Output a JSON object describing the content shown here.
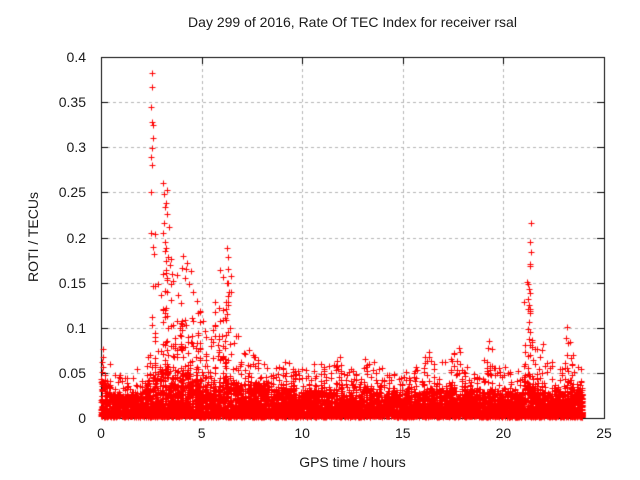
{
  "style": {
    "background": "#ffffff",
    "marker_color": "#ff0000",
    "grid_color": "#b4b4b4",
    "axis_color": "#000000",
    "text_color": "#1a1a1a"
  },
  "chart_data": {
    "type": "scatter",
    "title": "Day 299 of 2016, Rate Of TEC Index for receiver rsal",
    "xlabel": "GPS time / hours",
    "ylabel": "ROTI / TECUs",
    "xlim": [
      0,
      25
    ],
    "ylim": [
      0,
      0.4
    ],
    "xticks": [
      0,
      5,
      10,
      15,
      20,
      25
    ],
    "xtick_labels": [
      "0",
      "5",
      "10",
      "15",
      "20",
      "25"
    ],
    "yticks": [
      0,
      0.05,
      0.1,
      0.15,
      0.2,
      0.25,
      0.3,
      0.35,
      0.4
    ],
    "ytick_labels": [
      "0",
      "0.05",
      "0.1",
      "0.15",
      "0.2",
      "0.25",
      "0.3",
      "0.35",
      "0.4"
    ],
    "grid": true,
    "grid_style": "dashed",
    "legend": "none",
    "marker": {
      "shape": "plus",
      "size": 7,
      "color": "#ff0000"
    },
    "series_name": "ROTI",
    "data_extent_hours": [
      0,
      23.93
    ],
    "baseline_envelope_bins": {
      "bin_width_hours": 0.5,
      "columns": [
        "hour_start",
        "dense_top_tecu",
        "spike_top_tecu"
      ],
      "rows": [
        [
          0.0,
          0.045,
          0.06
        ],
        [
          0.5,
          0.028,
          0.048
        ],
        [
          1.0,
          0.026,
          0.046
        ],
        [
          1.5,
          0.03,
          0.055
        ],
        [
          2.0,
          0.038,
          0.075
        ],
        [
          2.5,
          0.055,
          0.15
        ],
        [
          3.0,
          0.065,
          0.185
        ],
        [
          3.5,
          0.058,
          0.16
        ],
        [
          4.0,
          0.062,
          0.175
        ],
        [
          4.5,
          0.055,
          0.135
        ],
        [
          5.0,
          0.045,
          0.105
        ],
        [
          5.5,
          0.04,
          0.13
        ],
        [
          6.0,
          0.045,
          0.16
        ],
        [
          6.5,
          0.042,
          0.092
        ],
        [
          7.0,
          0.038,
          0.078
        ],
        [
          7.5,
          0.042,
          0.072
        ],
        [
          8.0,
          0.038,
          0.064
        ],
        [
          8.5,
          0.034,
          0.058
        ],
        [
          9.0,
          0.038,
          0.065
        ],
        [
          9.5,
          0.034,
          0.056
        ],
        [
          10.0,
          0.03,
          0.054
        ],
        [
          10.5,
          0.034,
          0.063
        ],
        [
          11.0,
          0.034,
          0.058
        ],
        [
          11.5,
          0.04,
          0.066
        ],
        [
          12.0,
          0.034,
          0.056
        ],
        [
          12.5,
          0.03,
          0.053
        ],
        [
          13.0,
          0.034,
          0.06
        ],
        [
          13.5,
          0.034,
          0.063
        ],
        [
          14.0,
          0.03,
          0.054
        ],
        [
          14.5,
          0.029,
          0.05
        ],
        [
          15.0,
          0.03,
          0.056
        ],
        [
          15.5,
          0.034,
          0.06
        ],
        [
          16.0,
          0.038,
          0.07
        ],
        [
          16.5,
          0.036,
          0.063
        ],
        [
          17.0,
          0.034,
          0.068
        ],
        [
          17.5,
          0.038,
          0.075
        ],
        [
          18.0,
          0.034,
          0.06
        ],
        [
          18.5,
          0.03,
          0.053
        ],
        [
          19.0,
          0.036,
          0.08
        ],
        [
          19.5,
          0.034,
          0.058
        ],
        [
          20.0,
          0.032,
          0.056
        ],
        [
          20.5,
          0.03,
          0.053
        ],
        [
          21.0,
          0.042,
          0.13
        ],
        [
          21.5,
          0.036,
          0.078
        ],
        [
          22.0,
          0.032,
          0.062
        ],
        [
          22.5,
          0.032,
          0.063
        ],
        [
          23.0,
          0.038,
          0.09
        ],
        [
          23.5,
          0.034,
          0.058
        ]
      ]
    },
    "notable_points": [
      [
        2.54,
        0.382
      ],
      [
        2.54,
        0.367
      ],
      [
        2.5,
        0.345
      ],
      [
        2.55,
        0.328
      ],
      [
        2.57,
        0.325
      ],
      [
        2.56,
        0.31
      ],
      [
        2.54,
        0.299
      ],
      [
        2.5,
        0.289
      ],
      [
        2.54,
        0.28
      ],
      [
        2.5,
        0.25
      ],
      [
        2.5,
        0.205
      ],
      [
        2.69,
        0.204
      ],
      [
        2.6,
        0.19
      ],
      [
        2.63,
        0.182
      ],
      [
        3.09,
        0.26
      ],
      [
        3.29,
        0.253
      ],
      [
        3.14,
        0.248
      ],
      [
        3.24,
        0.238
      ],
      [
        3.19,
        0.234
      ],
      [
        3.29,
        0.226
      ],
      [
        3.14,
        0.216
      ],
      [
        3.39,
        0.212
      ],
      [
        3.09,
        0.205
      ],
      [
        3.19,
        0.195
      ],
      [
        3.24,
        0.188
      ],
      [
        3.34,
        0.178
      ],
      [
        3.44,
        0.17
      ],
      [
        3.54,
        0.16
      ],
      [
        3.59,
        0.152
      ],
      [
        4.08,
        0.18
      ],
      [
        4.28,
        0.172
      ],
      [
        4.48,
        0.163
      ],
      [
        4.18,
        0.155
      ],
      [
        4.38,
        0.148
      ],
      [
        4.58,
        0.14
      ],
      [
        4.78,
        0.13
      ],
      [
        4.9,
        0.118
      ],
      [
        5.05,
        0.108
      ],
      [
        5.93,
        0.164
      ],
      [
        6.27,
        0.188
      ],
      [
        6.32,
        0.178
      ],
      [
        6.3,
        0.165
      ],
      [
        6.25,
        0.15
      ],
      [
        6.35,
        0.14
      ],
      [
        6.22,
        0.128
      ],
      [
        6.28,
        0.115
      ],
      [
        0.08,
        0.076
      ],
      [
        0.1,
        0.068
      ],
      [
        0.06,
        0.062
      ],
      [
        0.12,
        0.057
      ],
      [
        21.36,
        0.216
      ],
      [
        21.33,
        0.195
      ],
      [
        21.35,
        0.184
      ],
      [
        21.33,
        0.171
      ],
      [
        21.34,
        0.168
      ],
      [
        21.16,
        0.151
      ],
      [
        21.2,
        0.148
      ],
      [
        21.25,
        0.143
      ],
      [
        21.3,
        0.138
      ],
      [
        21.22,
        0.132
      ],
      [
        21.28,
        0.125
      ],
      [
        21.33,
        0.119
      ],
      [
        21.26,
        0.106
      ],
      [
        21.3,
        0.095
      ],
      [
        21.28,
        0.088
      ],
      [
        21.95,
        0.082
      ],
      [
        23.15,
        0.101
      ],
      [
        23.1,
        0.089
      ],
      [
        23.2,
        0.083
      ],
      [
        19.3,
        0.085
      ],
      [
        19.25,
        0.078
      ],
      [
        17.8,
        0.078
      ],
      [
        16.3,
        0.073
      ],
      [
        11.9,
        0.068
      ],
      [
        13.1,
        0.065
      ],
      [
        9.16,
        0.062
      ]
    ]
  }
}
